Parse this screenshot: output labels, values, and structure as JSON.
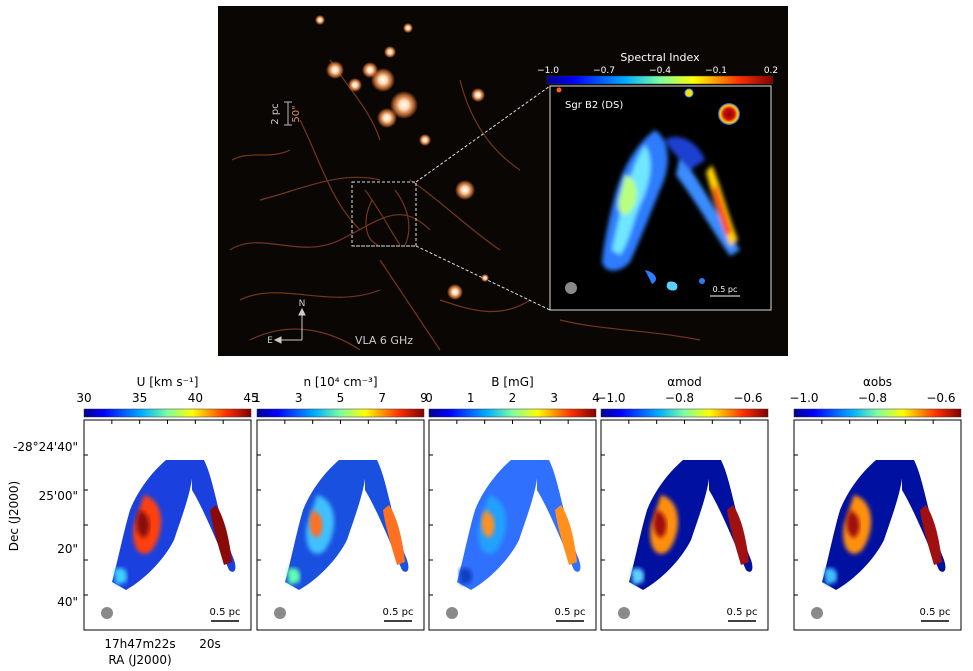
{
  "top_panel": {
    "label": "VLA 6 GHz",
    "scale_pc": "2 pc",
    "scale_arcsec": "50\"",
    "compass_n": "N",
    "compass_e": "E"
  },
  "inset": {
    "title": "Sgr B2 (DS)",
    "colorbar_label": "Spectral Index",
    "colorbar_ticks": [
      "−1.0",
      "−0.7",
      "−0.4",
      "−0.1",
      "0.2"
    ],
    "scalebar": "0.5 pc"
  },
  "panels": [
    {
      "label_html": "U [km s⁻¹]",
      "ticks": [
        "30",
        "35",
        "40",
        "45"
      ],
      "scalebar": "0.5 pc"
    },
    {
      "label_html": "n [10⁴ cm⁻³]",
      "ticks": [
        "1",
        "3",
        "5",
        "7",
        "9"
      ],
      "scalebar": "0.5 pc"
    },
    {
      "label_html": "B [mG]",
      "ticks": [
        "0",
        "1",
        "2",
        "3",
        "4"
      ],
      "scalebar": "0.5 pc"
    },
    {
      "label_html": "αmod",
      "ticks": [
        "−1.0",
        "−0.8",
        "−0.6"
      ],
      "scalebar": "0.5 pc"
    },
    {
      "label_html": "αobs",
      "ticks": [
        "−1.0",
        "−0.8",
        "−0.6"
      ],
      "scalebar": "0.5 pc"
    }
  ],
  "axes": {
    "ylabel": "Dec (J2000)",
    "yticks": [
      "-28°24'40\"",
      "25'00\"",
      "20\"",
      "40\""
    ],
    "xticks": [
      "17h47m22s",
      "20s"
    ],
    "xlabel": "RA (J2000)"
  },
  "colors": {
    "background_top": "#0a0604",
    "emission": "#e8956a",
    "jet_low": "#0a1aa0",
    "jet_high": "#8a0a0a"
  }
}
